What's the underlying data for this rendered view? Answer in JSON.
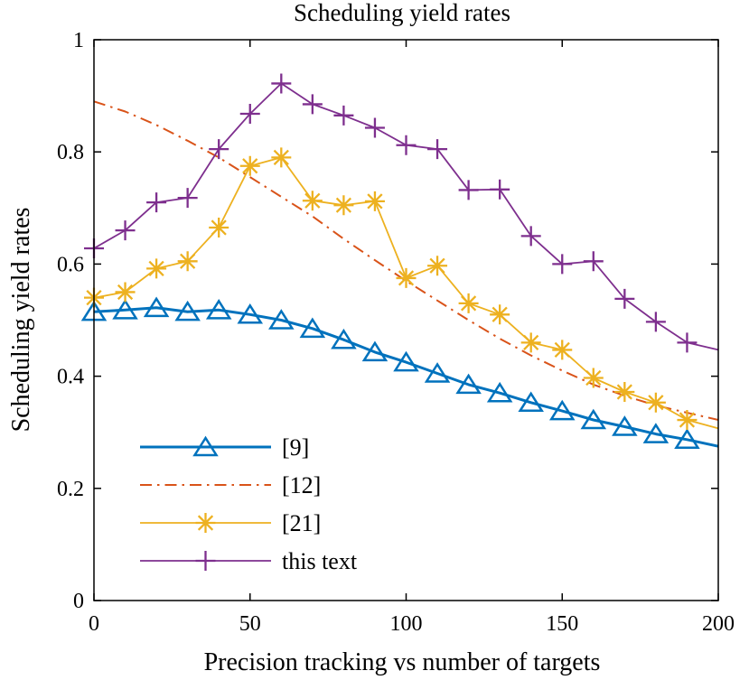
{
  "chart_data": {
    "type": "line",
    "title": "Scheduling yield rates",
    "xlabel": "Precision tracking vs number of targets",
    "ylabel": "Scheduling yield rates",
    "xlim": [
      0,
      200
    ],
    "ylim": [
      0,
      1
    ],
    "xticks": [
      "0",
      "50",
      "100",
      "150",
      "200"
    ],
    "yticks": [
      "0",
      "0.2",
      "0.4",
      "0.6",
      "0.8",
      "1"
    ],
    "grid": false,
    "legend_position": "bottom-left",
    "series": [
      {
        "name": "[9]",
        "color": "#0072bd",
        "style": "solid",
        "marker": "triangle",
        "x": [
          0,
          10,
          20,
          30,
          40,
          50,
          60,
          70,
          80,
          90,
          100,
          110,
          120,
          130,
          140,
          150,
          160,
          170,
          180,
          190,
          200
        ],
        "y": [
          0.515,
          0.518,
          0.522,
          0.515,
          0.518,
          0.51,
          0.5,
          0.485,
          0.465,
          0.443,
          0.425,
          0.405,
          0.385,
          0.37,
          0.353,
          0.338,
          0.322,
          0.31,
          0.297,
          0.287,
          0.275
        ],
        "marker_x": [
          0,
          10,
          20,
          30,
          40,
          50,
          60,
          70,
          80,
          90,
          100,
          110,
          120,
          130,
          140,
          150,
          160,
          170,
          180,
          190
        ]
      },
      {
        "name": "[12]",
        "color": "#d95319",
        "style": "dashdot",
        "marker": "none",
        "x": [
          0,
          10,
          20,
          30,
          40,
          50,
          60,
          70,
          80,
          90,
          100,
          110,
          120,
          130,
          140,
          150,
          160,
          170,
          180,
          190,
          200
        ],
        "y": [
          0.89,
          0.872,
          0.848,
          0.82,
          0.79,
          0.755,
          0.72,
          0.685,
          0.645,
          0.607,
          0.57,
          0.535,
          0.5,
          0.467,
          0.437,
          0.41,
          0.385,
          0.365,
          0.348,
          0.335,
          0.322
        ]
      },
      {
        "name": "[21]",
        "color": "#edb120",
        "style": "solid",
        "marker": "star",
        "x": [
          0,
          10,
          20,
          30,
          40,
          50,
          60,
          70,
          80,
          90,
          100,
          110,
          120,
          130,
          140,
          150,
          160,
          170,
          180,
          190,
          200
        ],
        "y": [
          0.54,
          0.55,
          0.592,
          0.605,
          0.665,
          0.775,
          0.79,
          0.713,
          0.705,
          0.712,
          0.575,
          0.597,
          0.53,
          0.51,
          0.46,
          0.447,
          0.397,
          0.372,
          0.353,
          0.322,
          0.307
        ],
        "marker_x": [
          0,
          10,
          20,
          30,
          40,
          50,
          60,
          70,
          80,
          90,
          100,
          110,
          120,
          130,
          140,
          150,
          160,
          170,
          180,
          190
        ]
      },
      {
        "name": "this text",
        "color": "#7e2f8e",
        "style": "solid",
        "marker": "plus",
        "x": [
          0,
          10,
          20,
          30,
          40,
          50,
          60,
          70,
          80,
          90,
          100,
          110,
          120,
          130,
          140,
          150,
          160,
          170,
          180,
          190,
          200
        ],
        "y": [
          0.628,
          0.66,
          0.71,
          0.718,
          0.805,
          0.868,
          0.922,
          0.885,
          0.865,
          0.843,
          0.812,
          0.805,
          0.732,
          0.733,
          0.65,
          0.6,
          0.605,
          0.538,
          0.497,
          0.46,
          0.447
        ],
        "marker_x": [
          0,
          10,
          20,
          30,
          40,
          50,
          60,
          70,
          80,
          90,
          100,
          110,
          120,
          130,
          140,
          150,
          160,
          170,
          180,
          190
        ]
      }
    ]
  }
}
